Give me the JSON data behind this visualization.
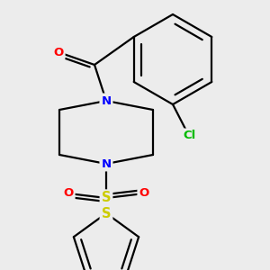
{
  "background_color": "#ececec",
  "bond_color": "#000000",
  "figsize": [
    3.0,
    3.0
  ],
  "dpi": 100,
  "colors": {
    "N": "#0000ff",
    "O": "#ff0000",
    "S_sulfonyl": "#cccc00",
    "S_thio": "#cccc00",
    "Cl": "#00bb00",
    "C": "#000000",
    "bond": "#000000"
  },
  "lw": 1.6
}
